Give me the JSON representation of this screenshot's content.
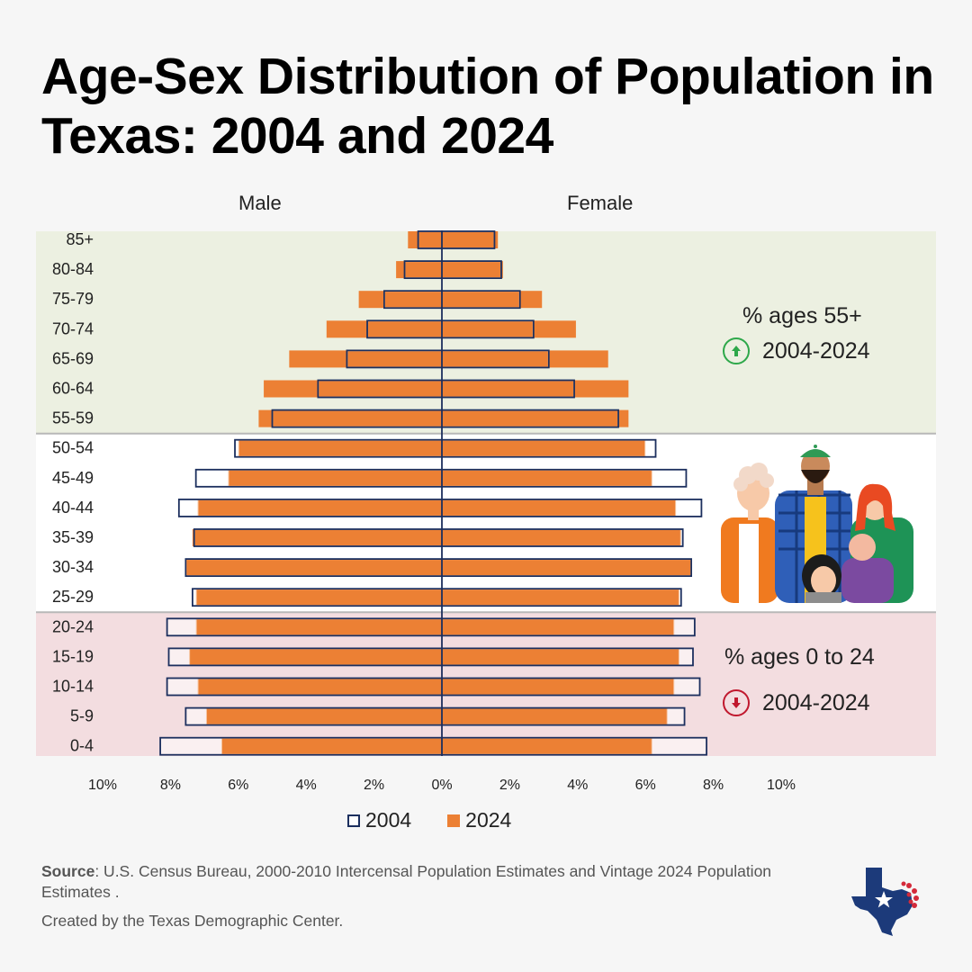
{
  "title": "Age-Sex Distribution of Population in Texas: 2004 and 2024",
  "annotations": {
    "older": {
      "label": "% ages 55+",
      "period": "2004-2024",
      "direction": "up",
      "color": "#2ea84a",
      "icon": "arrow-up-circle-icon"
    },
    "younger": {
      "label": "% ages 0 to 24",
      "period": "2004-2024",
      "direction": "down",
      "color": "#c0182e",
      "icon": "arrow-down-circle-icon"
    }
  },
  "footer": {
    "source_label": "Source",
    "source_text": ": U.S. Census Bureau, 2000-2010 Intercensal Population Estimates and Vintage 2024 Population Estimates .",
    "created": "Created by the Texas Demographic Center."
  },
  "chart_data": {
    "type": "bar",
    "subtype": "population-pyramid",
    "side_labels": {
      "left": "Male",
      "right": "Female"
    },
    "x_ticks": [
      "10%",
      "8%",
      "6%",
      "4%",
      "2%",
      "0%",
      "2%",
      "4%",
      "6%",
      "8%",
      "10%"
    ],
    "xlim": [
      -10,
      10
    ],
    "age_groups": [
      "85+",
      "80-84",
      "75-79",
      "70-74",
      "65-69",
      "60-64",
      "55-59",
      "50-54",
      "45-49",
      "40-44",
      "35-39",
      "30-34",
      "25-29",
      "20-24",
      "15-19",
      "10-14",
      "5-9",
      "0-4"
    ],
    "series": [
      {
        "name": "2004",
        "style": "outline",
        "color": "#1c2f5e",
        "male": [
          0.7,
          1.1,
          1.7,
          2.2,
          2.8,
          3.65,
          5.0,
          6.1,
          7.25,
          7.75,
          7.3,
          7.55,
          7.35,
          8.1,
          8.05,
          8.1,
          7.55,
          8.3
        ],
        "female": [
          1.55,
          1.75,
          2.3,
          2.7,
          3.15,
          3.9,
          5.2,
          6.3,
          7.2,
          7.65,
          7.1,
          7.35,
          7.05,
          7.45,
          7.4,
          7.6,
          7.15,
          7.8
        ]
      },
      {
        "name": "2024",
        "style": "filled",
        "color": "#ec8034",
        "male": [
          1.0,
          1.35,
          2.45,
          3.4,
          4.5,
          5.25,
          5.4,
          6.0,
          6.3,
          7.2,
          7.35,
          7.55,
          7.25,
          7.25,
          7.45,
          7.2,
          6.95,
          6.5
        ],
        "female": [
          1.65,
          1.8,
          2.95,
          3.95,
          4.9,
          5.5,
          5.5,
          6.0,
          6.2,
          6.9,
          7.05,
          7.35,
          7.0,
          6.85,
          7.0,
          6.85,
          6.65,
          6.2
        ]
      }
    ],
    "bands": [
      {
        "from": "85+",
        "to": "55-59",
        "color": "#ecf0e1"
      },
      {
        "from": "50-54",
        "to": "25-29",
        "color": "#ffffff"
      },
      {
        "from": "20-24",
        "to": "0-4",
        "color": "#f3dde0"
      }
    ],
    "legend": {
      "position": "bottom",
      "entries": [
        "2004",
        "2024"
      ]
    }
  }
}
